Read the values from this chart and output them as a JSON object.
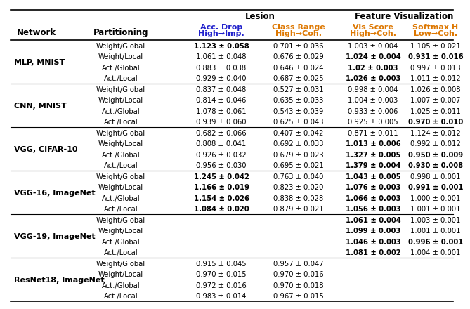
{
  "blue_color": "#2222cc",
  "orange_color": "#dd7700",
  "row_groups": [
    {
      "network": "MLP, MNIST",
      "rows": [
        {
          "part": "Weight/Global",
          "c2": "1.123 ± 0.058",
          "c2b": true,
          "c3": "0.701 ± 0.036",
          "c3b": false,
          "c4": "1.003 ± 0.004",
          "c4b": false,
          "c5": "1.105 ± 0.021",
          "c5b": false
        },
        {
          "part": "Weight/Local",
          "c2": "1.061 ± 0.048",
          "c2b": false,
          "c3": "0.676 ± 0.029",
          "c3b": false,
          "c4": "1.024 ± 0.004",
          "c4b": true,
          "c5": "0.931 ± 0.016",
          "c5b": true
        },
        {
          "part": "Act./Global",
          "c2": "0.883 ± 0.038",
          "c2b": false,
          "c3": "0.646 ± 0.024",
          "c3b": false,
          "c4": "1.02 ± 0.003",
          "c4b": true,
          "c5": "0.997 ± 0.013",
          "c5b": false
        },
        {
          "part": "Act./Local",
          "c2": "0.929 ± 0.040",
          "c2b": false,
          "c3": "0.687 ± 0.025",
          "c3b": false,
          "c4": "1.026 ± 0.003",
          "c4b": true,
          "c5": "1.011 ± 0.012",
          "c5b": false
        }
      ]
    },
    {
      "network": "CNN, MNIST",
      "rows": [
        {
          "part": "Weight/Global",
          "c2": "0.837 ± 0.048",
          "c2b": false,
          "c3": "0.527 ± 0.031",
          "c3b": false,
          "c4": "0.998 ± 0.004",
          "c4b": false,
          "c5": "1.026 ± 0.008",
          "c5b": false
        },
        {
          "part": "Weight/Local",
          "c2": "0.814 ± 0.046",
          "c2b": false,
          "c3": "0.635 ± 0.033",
          "c3b": false,
          "c4": "1.004 ± 0.003",
          "c4b": false,
          "c5": "1.007 ± 0.007",
          "c5b": false
        },
        {
          "part": "Act./Global",
          "c2": "1.078 ± 0.061",
          "c2b": false,
          "c3": "0.543 ± 0.039",
          "c3b": false,
          "c4": "0.933 ± 0.006",
          "c4b": false,
          "c5": "1.025 ± 0.011",
          "c5b": false
        },
        {
          "part": "Act./Local",
          "c2": "0.939 ± 0.060",
          "c2b": false,
          "c3": "0.625 ± 0.043",
          "c3b": false,
          "c4": "0.925 ± 0.005",
          "c4b": false,
          "c5": "0.970 ± 0.010",
          "c5b": true
        }
      ]
    },
    {
      "network": "VGG, CIFAR-10",
      "rows": [
        {
          "part": "Weight/Global",
          "c2": "0.682 ± 0.066",
          "c2b": false,
          "c3": "0.407 ± 0.042",
          "c3b": false,
          "c4": "0.871 ± 0.011",
          "c4b": false,
          "c5": "1.124 ± 0.012",
          "c5b": false
        },
        {
          "part": "Weight/Local",
          "c2": "0.808 ± 0.041",
          "c2b": false,
          "c3": "0.692 ± 0.033",
          "c3b": false,
          "c4": "1.013 ± 0.006",
          "c4b": true,
          "c5": "0.992 ± 0.012",
          "c5b": false
        },
        {
          "part": "Act./Global",
          "c2": "0.926 ± 0.032",
          "c2b": false,
          "c3": "0.679 ± 0.023",
          "c3b": false,
          "c4": "1.327 ± 0.005",
          "c4b": true,
          "c5": "0.950 ± 0.009",
          "c5b": true
        },
        {
          "part": "Act./Local",
          "c2": "0.956 ± 0.030",
          "c2b": false,
          "c3": "0.695 ± 0.021",
          "c3b": false,
          "c4": "1.379 ± 0.004",
          "c4b": true,
          "c5": "0.930 ± 0.008",
          "c5b": true
        }
      ]
    },
    {
      "network": "VGG-16, ImageNet",
      "rows": [
        {
          "part": "Weight/Global",
          "c2": "1.245 ± 0.042",
          "c2b": true,
          "c3": "0.763 ± 0.040",
          "c3b": false,
          "c4": "1.043 ± 0.005",
          "c4b": true,
          "c5": "0.998 ± 0.001",
          "c5b": false
        },
        {
          "part": "Weight/Local",
          "c2": "1.166 ± 0.019",
          "c2b": true,
          "c3": "0.823 ± 0.020",
          "c3b": false,
          "c4": "1.076 ± 0.003",
          "c4b": true,
          "c5": "0.991 ± 0.001",
          "c5b": true
        },
        {
          "part": "Act./Global",
          "c2": "1.154 ± 0.026",
          "c2b": true,
          "c3": "0.838 ± 0.028",
          "c3b": false,
          "c4": "1.066 ± 0.003",
          "c4b": true,
          "c5": "1.000 ± 0.001",
          "c5b": false
        },
        {
          "part": "Act./Local",
          "c2": "1.084 ± 0.020",
          "c2b": true,
          "c3": "0.879 ± 0.021",
          "c3b": false,
          "c4": "1.056 ± 0.003",
          "c4b": true,
          "c5": "1.001 ± 0.001",
          "c5b": false
        }
      ]
    },
    {
      "network": "VGG-19, ImageNet",
      "rows": [
        {
          "part": "Weight/Global",
          "c2": "",
          "c2b": false,
          "c3": "",
          "c3b": false,
          "c4": "1.061 ± 0.004",
          "c4b": true,
          "c5": "1.003 ± 0.001",
          "c5b": false
        },
        {
          "part": "Weight/Local",
          "c2": "",
          "c2b": false,
          "c3": "",
          "c3b": false,
          "c4": "1.099 ± 0.003",
          "c4b": true,
          "c5": "1.001 ± 0.001",
          "c5b": false
        },
        {
          "part": "Act./Global",
          "c2": "",
          "c2b": false,
          "c3": "",
          "c3b": false,
          "c4": "1.046 ± 0.003",
          "c4b": true,
          "c5": "0.996 ± 0.001",
          "c5b": true
        },
        {
          "part": "Act./Local",
          "c2": "",
          "c2b": false,
          "c3": "",
          "c3b": false,
          "c4": "1.081 ± 0.002",
          "c4b": true,
          "c5": "1.004 ± 0.001",
          "c5b": false
        }
      ]
    },
    {
      "network": "ResNet18, ImageNet",
      "rows": [
        {
          "part": "Weight/Global",
          "c2": "0.915 ± 0.045",
          "c2b": false,
          "c3": "0.957 ± 0.047",
          "c3b": false,
          "c4": "",
          "c4b": false,
          "c5": "",
          "c5b": false
        },
        {
          "part": "Weight/Local",
          "c2": "0.970 ± 0.015",
          "c2b": false,
          "c3": "0.970 ± 0.016",
          "c3b": false,
          "c4": "",
          "c4b": false,
          "c5": "",
          "c5b": false
        },
        {
          "part": "Act./Global",
          "c2": "0.972 ± 0.016",
          "c2b": false,
          "c3": "0.970 ± 0.018",
          "c3b": false,
          "c4": "",
          "c4b": false,
          "c5": "",
          "c5b": false
        },
        {
          "part": "Act./Local",
          "c2": "0.983 ± 0.014",
          "c2b": false,
          "c3": "0.967 ± 0.015",
          "c3b": false,
          "c4": "",
          "c4b": false,
          "c5": "",
          "c5b": false
        }
      ]
    }
  ]
}
